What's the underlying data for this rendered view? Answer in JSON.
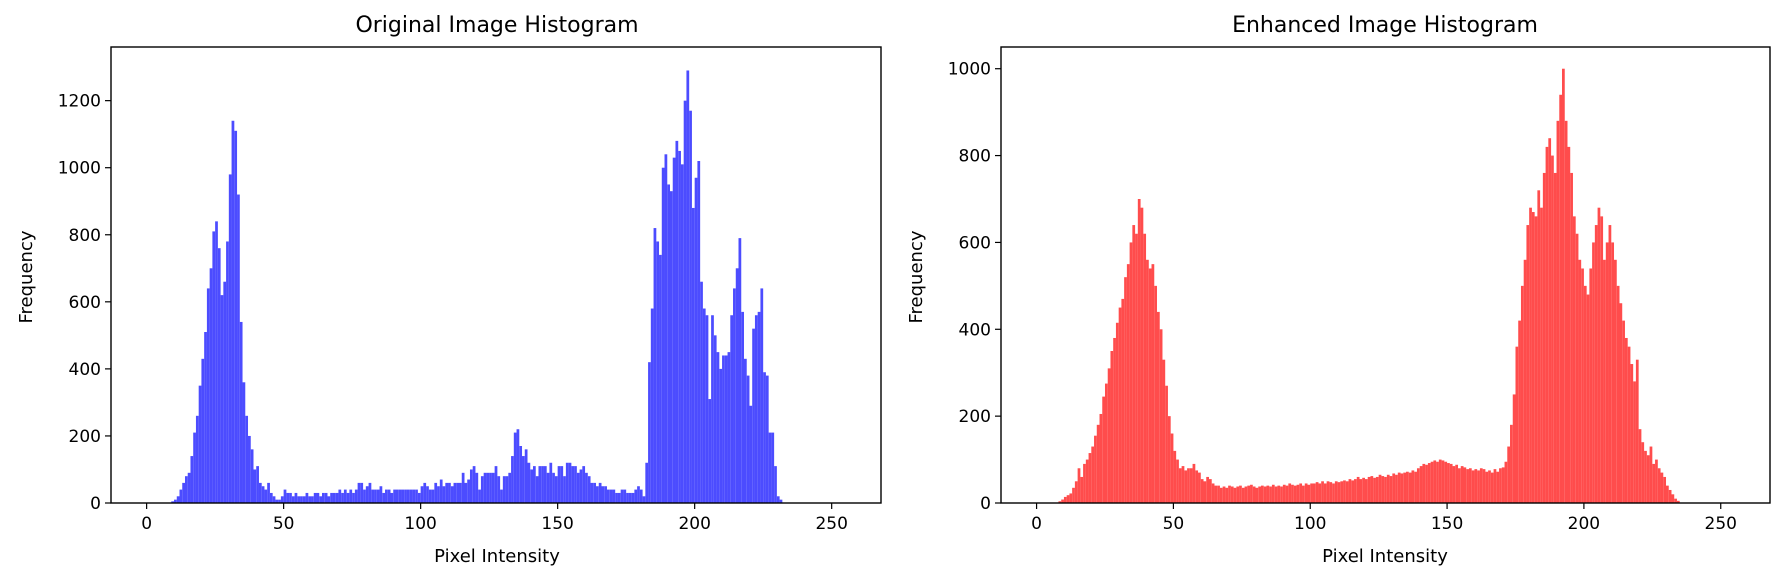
{
  "chart_data": [
    {
      "type": "bar",
      "title": "Original Image Histogram",
      "xlabel": "Pixel Intensity",
      "ylabel": "Frequency",
      "xlim": [
        -13,
        268
      ],
      "ylim": [
        0,
        1360
      ],
      "xticks": [
        0,
        50,
        100,
        150,
        200,
        250
      ],
      "yticks": [
        0,
        200,
        400,
        600,
        800,
        1000,
        1200
      ],
      "bin_start": 0,
      "bin_width": 1,
      "color": "#4c4cff",
      "grid": false,
      "values": [
        0,
        0,
        0,
        0,
        0,
        0,
        0,
        0,
        0,
        5,
        10,
        20,
        40,
        60,
        80,
        90,
        140,
        210,
        260,
        350,
        430,
        510,
        640,
        700,
        810,
        840,
        760,
        620,
        660,
        780,
        980,
        1140,
        1110,
        920,
        540,
        360,
        260,
        200,
        160,
        100,
        110,
        60,
        50,
        40,
        60,
        30,
        20,
        10,
        10,
        20,
        40,
        30,
        30,
        20,
        30,
        20,
        20,
        20,
        30,
        20,
        20,
        30,
        30,
        20,
        30,
        30,
        20,
        30,
        30,
        30,
        40,
        30,
        40,
        30,
        40,
        30,
        40,
        60,
        60,
        40,
        50,
        60,
        40,
        40,
        40,
        50,
        30,
        40,
        40,
        30,
        40,
        40,
        40,
        40,
        40,
        40,
        40,
        40,
        40,
        30,
        50,
        60,
        50,
        40,
        40,
        60,
        50,
        70,
        50,
        60,
        60,
        50,
        60,
        60,
        60,
        90,
        60,
        70,
        100,
        110,
        90,
        40,
        80,
        90,
        90,
        90,
        90,
        110,
        80,
        40,
        80,
        80,
        90,
        140,
        210,
        220,
        170,
        140,
        160,
        120,
        100,
        110,
        80,
        110,
        110,
        110,
        90,
        120,
        90,
        80,
        110,
        110,
        80,
        120,
        120,
        110,
        110,
        90,
        100,
        110,
        90,
        80,
        60,
        60,
        50,
        60,
        50,
        50,
        40,
        40,
        40,
        30,
        30,
        40,
        40,
        30,
        30,
        30,
        40,
        50,
        40,
        20,
        120,
        420,
        580,
        820,
        780,
        740,
        1000,
        1040,
        950,
        930,
        1030,
        1080,
        1050,
        1010,
        1200,
        1290,
        1170,
        880,
        970,
        1020,
        660,
        580,
        560,
        310,
        560,
        500,
        450,
        400,
        440,
        440,
        450,
        560,
        640,
        700,
        790,
        570,
        430,
        380,
        290,
        520,
        560,
        570,
        640,
        390,
        380,
        210,
        210,
        110,
        20,
        10,
        0,
        0,
        0,
        0,
        0,
        0,
        0,
        0,
        0,
        0,
        0,
        0,
        0,
        0,
        0,
        0,
        0
      ]
    },
    {
      "type": "bar",
      "title": "Enhanced Image Histogram",
      "xlabel": "Pixel Intensity",
      "ylabel": "Frequency",
      "xlim": [
        -13,
        268
      ],
      "ylim": [
        0,
        1050
      ],
      "xticks": [
        0,
        50,
        100,
        150,
        200,
        250
      ],
      "yticks": [
        0,
        200,
        400,
        600,
        800,
        1000
      ],
      "bin_start": 0,
      "bin_width": 1,
      "color": "#ff4c4c",
      "grid": false,
      "values": [
        0,
        0,
        0,
        0,
        0,
        0,
        0,
        0,
        4,
        8,
        14,
        18,
        22,
        35,
        50,
        80,
        60,
        90,
        100,
        115,
        130,
        155,
        180,
        205,
        245,
        275,
        310,
        350,
        380,
        415,
        450,
        470,
        520,
        550,
        600,
        640,
        620,
        700,
        680,
        620,
        560,
        540,
        550,
        500,
        440,
        400,
        330,
        270,
        200,
        160,
        120,
        100,
        80,
        85,
        75,
        80,
        80,
        90,
        75,
        70,
        55,
        50,
        60,
        55,
        45,
        40,
        40,
        35,
        38,
        35,
        40,
        38,
        35,
        38,
        40,
        35,
        38,
        40,
        42,
        38,
        35,
        38,
        40,
        38,
        40,
        38,
        42,
        38,
        40,
        38,
        42,
        40,
        45,
        42,
        40,
        42,
        45,
        40,
        45,
        42,
        45,
        45,
        48,
        45,
        50,
        45,
        50,
        48,
        45,
        50,
        48,
        50,
        52,
        50,
        55,
        52,
        55,
        60,
        55,
        58,
        55,
        60,
        62,
        58,
        60,
        65,
        62,
        60,
        65,
        62,
        68,
        65,
        70,
        68,
        70,
        72,
        70,
        75,
        72,
        80,
        85,
        90,
        88,
        92,
        95,
        98,
        95,
        100,
        98,
        95,
        92,
        90,
        85,
        88,
        80,
        85,
        82,
        78,
        80,
        75,
        78,
        75,
        80,
        78,
        72,
        75,
        70,
        78,
        72,
        80,
        82,
        95,
        130,
        180,
        250,
        360,
        420,
        500,
        560,
        640,
        680,
        670,
        660,
        720,
        680,
        760,
        820,
        840,
        800,
        760,
        880,
        940,
        1000,
        880,
        820,
        760,
        660,
        620,
        560,
        540,
        500,
        480,
        540,
        600,
        640,
        680,
        660,
        560,
        600,
        640,
        600,
        560,
        500,
        460,
        420,
        380,
        360,
        320,
        280,
        330,
        170,
        140,
        120,
        110,
        130,
        90,
        100,
        80,
        70,
        60,
        40,
        30,
        20,
        10,
        5,
        0,
        0,
        0,
        0,
        0,
        0,
        0,
        0,
        0,
        0,
        0,
        0,
        0,
        0,
        0,
        0,
        0,
        0,
        0,
        0,
        0,
        0,
        0,
        0,
        0
      ]
    }
  ]
}
